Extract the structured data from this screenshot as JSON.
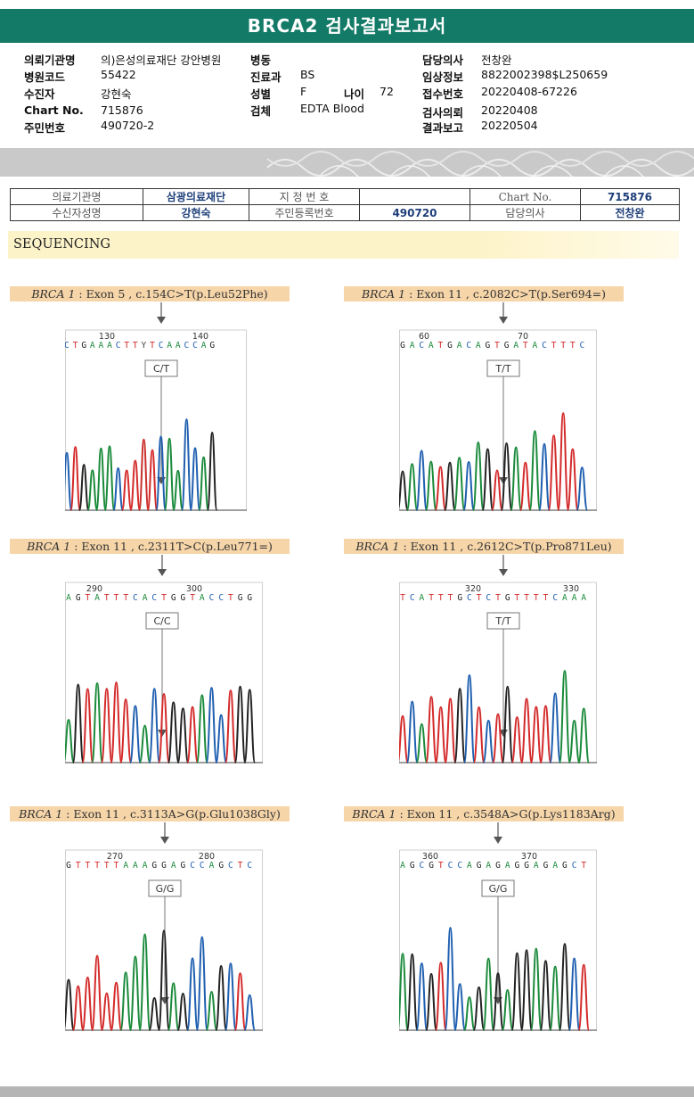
{
  "report_title": "BRCA2 검사결과보고서",
  "header": {
    "col1": [
      {
        "label": "의뢰기관명",
        "value": "의)은성의료재단 강안병원"
      },
      {
        "label": "병원코드",
        "value": "55422"
      },
      {
        "label": "수진자",
        "value": "강현숙"
      },
      {
        "label": "Chart No.",
        "value": "715876"
      },
      {
        "label": "주민번호",
        "value": "490720-2"
      }
    ],
    "col2": [
      {
        "label": "병동",
        "value": ""
      },
      {
        "label": "진료과",
        "value": "BS"
      },
      {
        "label": "성별",
        "value": "F"
      },
      {
        "label": "검체",
        "value": "EDTA Blood"
      }
    ],
    "age": {
      "label": "나이",
      "value": "72"
    },
    "col3": [
      {
        "label": "담당의사",
        "value": "전창완"
      },
      {
        "label": "임상정보",
        "value": "8822002398$L250659"
      },
      {
        "label": "접수번호",
        "value": "20220408-67226"
      },
      {
        "label": "검사의뢰",
        "value": "20220408"
      },
      {
        "label": "결과보고",
        "value": "20220504"
      }
    ]
  },
  "info_table": {
    "row1": [
      "의료기관명",
      "삼광의료재단",
      "지 정 번 호",
      "",
      "Chart No.",
      "715876"
    ],
    "row2": [
      "수신자성명",
      "강현숙",
      "주민등록번호",
      "490720",
      "담당의사",
      "전창완"
    ]
  },
  "section_title": "SEQUENCING",
  "panels": [
    {
      "gene": "BRCA 1",
      "text": " : Exon 5 , c.154C>T(p.Leu52Phe)",
      "genotype": "C/T",
      "pos1": "130",
      "pos2": "140",
      "seq": "CTGAAACTTYTCAACCAG"
    },
    {
      "gene": "BRCA 1",
      "text": " : Exon 11 , c.2082C>T(p.Ser694=)",
      "genotype": "T/T",
      "pos1": "60",
      "pos2": "70",
      "seq": "GACATGACAGTGATACTTTC"
    },
    {
      "gene": "BRCA 1",
      "text": " : Exon 11 , c.2311T>C(p.Leu771=)",
      "genotype": "C/C",
      "pos1": "290",
      "pos2": "300",
      "seq": "AGTATTTCACTGGTACCTGG"
    },
    {
      "gene": "BRCA 1",
      "text": " : Exon 11 , c.2612C>T(p.Pro871Leu)",
      "genotype": "T/T",
      "pos1": "320",
      "pos2": "330",
      "seq": "TCATTTGCTCTGTTTTCAAA"
    },
    {
      "gene": "BRCA 1",
      "text": " : Exon 11 , c.3113A>G(p.Glu1038Gly)",
      "genotype": "G/G",
      "pos1": "270",
      "pos2": "280",
      "seq": "GTTTTTAAAGGAGCCAGCTC"
    },
    {
      "gene": "BRCA 1",
      "text": " : Exon 11 , c.3548A>G(p.Lys1183Arg)",
      "genotype": "G/G",
      "pos1": "360",
      "pos2": "370",
      "seq": "AGCGTCCAGAGAGGAGAGCT"
    }
  ],
  "colors": {
    "title_bg": "#137a67",
    "label_bg": "#f6d5a9",
    "A": "#1a8a3a",
    "C": "#1f5fb0",
    "G": "#222222",
    "T": "#d42a2a"
  }
}
